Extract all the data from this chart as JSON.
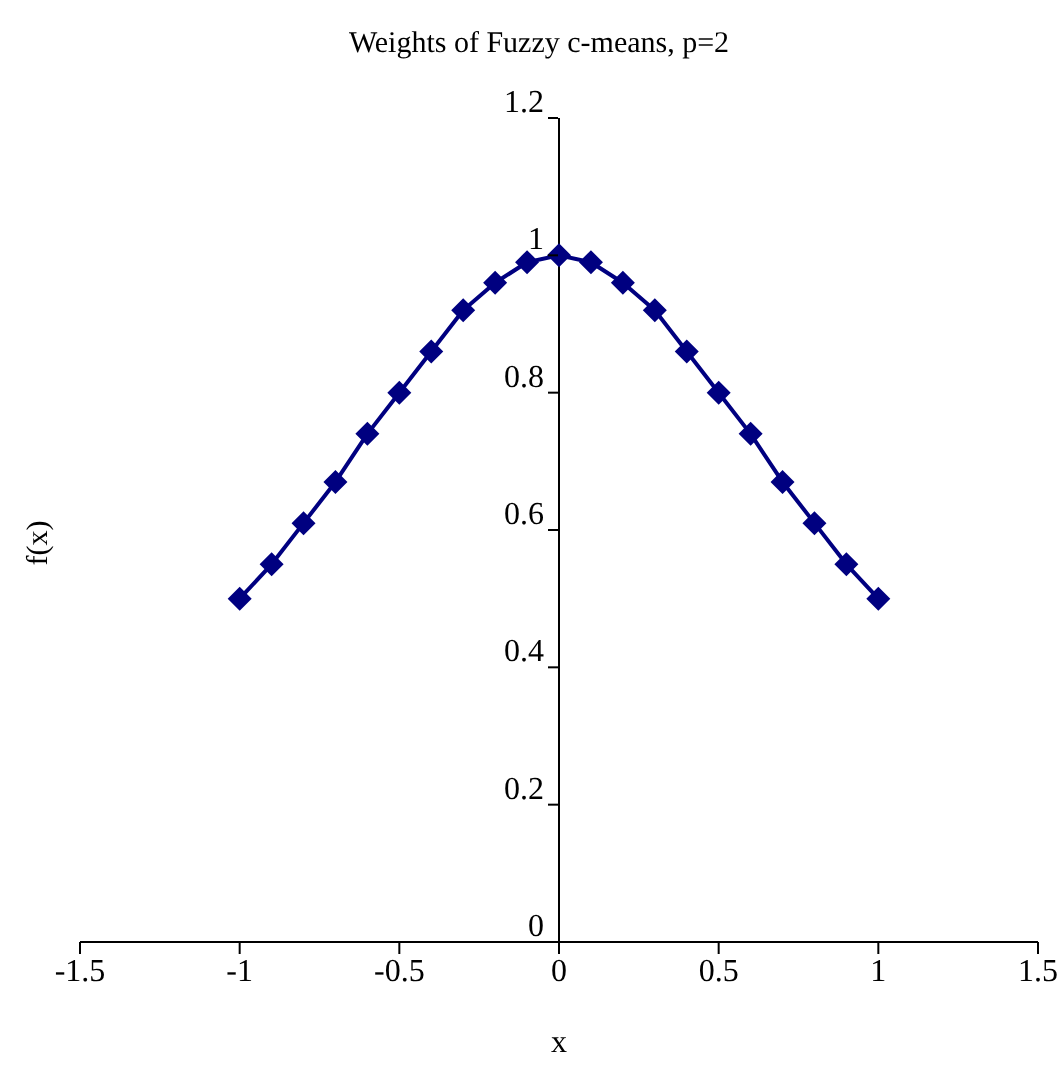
{
  "chart_data": {
    "type": "line",
    "title": "Weights of Fuzzy c-means, p=2",
    "xlabel": "x",
    "ylabel": "f(x)",
    "x": [
      -1,
      -0.9,
      -0.8,
      -0.7,
      -0.6,
      -0.5,
      -0.4,
      -0.3,
      -0.2,
      -0.1,
      0,
      0.1,
      0.2,
      0.3,
      0.4,
      0.5,
      0.6,
      0.7,
      0.8,
      0.9,
      1
    ],
    "series": [
      {
        "color": "#000080",
        "values": [
          0.5,
          0.55,
          0.61,
          0.67,
          0.74,
          0.8,
          0.86,
          0.92,
          0.96,
          0.99,
          1,
          0.99,
          0.96,
          0.92,
          0.86,
          0.8,
          0.74,
          0.67,
          0.61,
          0.55,
          0.5
        ]
      }
    ],
    "xlim": [
      -1.5,
      1.5
    ],
    "xticks": [
      -1.5,
      -1,
      -0.5,
      0,
      0.5,
      1,
      1.5
    ],
    "ylim": [
      0,
      1.2
    ],
    "yticks": [
      0,
      0.2,
      0.4,
      0.6,
      0.8,
      1,
      1.2
    ],
    "marker": "diamond",
    "line_style": "solid",
    "grid": false,
    "legend": false
  }
}
